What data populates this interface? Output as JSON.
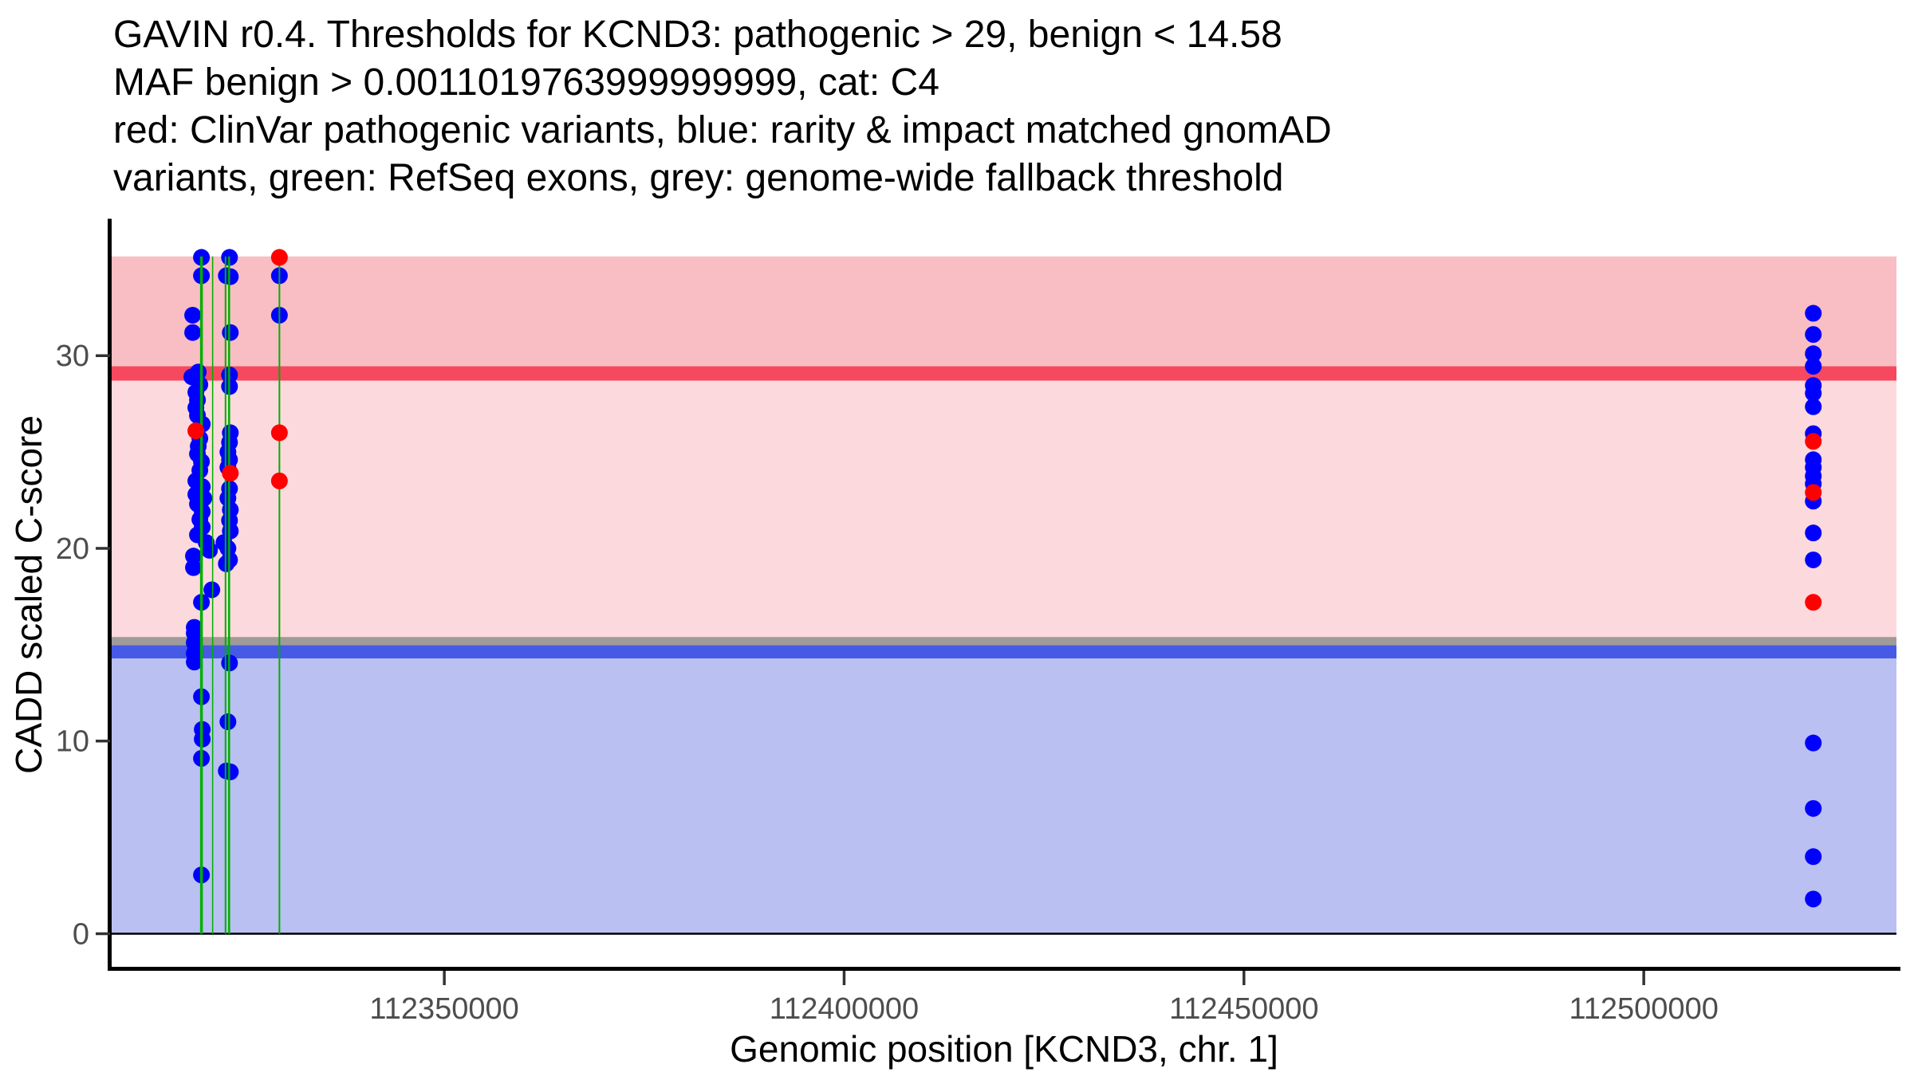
{
  "title_lines": [
    "GAVIN r0.4. Thresholds for KCND3: pathogenic > 29, benign < 14.58",
    "MAF benign > 0.0011019763999999999, cat: C4",
    "red: ClinVar pathogenic variants, blue: rarity & impact matched gnomAD",
    "variants, green: RefSeq exons, grey: genome-wide fallback threshold"
  ],
  "colors": {
    "point_blue": "#0000FF",
    "point_red": "#FF0000",
    "exon_green": "#00AF00",
    "pathogenic_zone": "#F8BEC3",
    "pathogenic_band": "#F6495F",
    "vous_zone": "#FCD9DD",
    "fallback_band": "#A09B98",
    "benign_band": "#465AE6",
    "benign_zone": "#BAC0F2",
    "axis_text": "#4D4D4D",
    "axis_line": "#000000",
    "tick_mark": "#333333",
    "zero_line": "#000000"
  },
  "chart_data": {
    "type": "scatter",
    "title": "GAVIN r0.4. Thresholds for KCND3: pathogenic > 29, benign < 14.58 MAF benign > 0.0011019763999999999, cat: C4",
    "xlabel": "Genomic position [KCND3, chr. 1]",
    "ylabel": "CADD scaled C-score",
    "xlim": [
      112308400,
      112531600
    ],
    "ylim": [
      -1.8,
      37
    ],
    "grid": false,
    "legend": "in title text",
    "axes": {
      "x": {
        "label": "Genomic position [KCND3, chr. 1]",
        "ticks": [
          112350000,
          112400000,
          112450000,
          112500000
        ],
        "tick_labels": [
          "112350000",
          "112400000",
          "112450000",
          "112500000"
        ]
      },
      "y": {
        "label": "CADD scaled C-score",
        "ticks": [
          0,
          10,
          20,
          30
        ],
        "tick_labels": [
          "0",
          "10",
          "20",
          "30"
        ]
      }
    },
    "thresholds": {
      "pathogenic_cadd": 29,
      "benign_cadd": 14.58,
      "maf_benign": "0.0011019763999999999",
      "category": "C4",
      "genome_wide_fallback_cadd": 15
    },
    "regions": [
      {
        "name": "pathogenic-zone",
        "y1": 29.45,
        "y2": 35.15,
        "color": "#F8BEC3"
      },
      {
        "name": "pathogenic-threshold-band",
        "y1": 28.7,
        "y2": 29.45,
        "color": "#F6495F"
      },
      {
        "name": "vous-zone",
        "y1": 15.4,
        "y2": 28.7,
        "color": "#FCD9DD"
      },
      {
        "name": "fallback-threshold-band",
        "y1": 14.97,
        "y2": 15.4,
        "color": "#A09B98"
      },
      {
        "name": "benign-threshold-band",
        "y1": 14.28,
        "y2": 14.97,
        "color": "#465AE6"
      },
      {
        "name": "benign-zone",
        "y1": 0,
        "y2": 14.28,
        "color": "#BAC0F2"
      }
    ],
    "baseline": {
      "y": 0,
      "color": "#000000",
      "width": 2.5
    },
    "exons": {
      "name": "RefSeq exons",
      "color": "#00AF00",
      "y_top": 35.15,
      "y_bottom": 0,
      "lines": [
        {
          "x": 112319630,
          "w": 3.5
        },
        {
          "x": 112321030,
          "w": 1.5
        },
        {
          "x": 112322640,
          "w": 2.0
        },
        {
          "x": 112323090,
          "w": 2.5
        },
        {
          "x": 112329380,
          "w": 2.0
        }
      ]
    },
    "point_radius": 10.5,
    "series": [
      {
        "name": "rarity & impact matched gnomAD variants",
        "color": "#0000FF",
        "points": [
          [
            112319630,
            35.1
          ],
          [
            112323140,
            35.1
          ],
          [
            112319630,
            34.15
          ],
          [
            112322740,
            34.15
          ],
          [
            112323240,
            34.1
          ],
          [
            112329380,
            34.15
          ],
          [
            112318530,
            32.1
          ],
          [
            112329380,
            32.1
          ],
          [
            112318530,
            31.2
          ],
          [
            112323240,
            31.2
          ],
          [
            112319230,
            29.15
          ],
          [
            112318430,
            28.9
          ],
          [
            112323140,
            29.0
          ],
          [
            112319430,
            28.5
          ],
          [
            112323140,
            28.4
          ],
          [
            112318930,
            28.1
          ],
          [
            112319130,
            27.7
          ],
          [
            112318930,
            27.3
          ],
          [
            112319130,
            26.9
          ],
          [
            112319730,
            26.45
          ],
          [
            112323240,
            26.0
          ],
          [
            112319430,
            25.7
          ],
          [
            112323140,
            25.5
          ],
          [
            112319230,
            25.3
          ],
          [
            112322940,
            25.0
          ],
          [
            112319130,
            24.9
          ],
          [
            112323140,
            24.6
          ],
          [
            112319630,
            24.5
          ],
          [
            112322940,
            24.2
          ],
          [
            112319430,
            24.05
          ],
          [
            112318930,
            23.5
          ],
          [
            112319730,
            23.2
          ],
          [
            112323140,
            23.1
          ],
          [
            112318930,
            22.8
          ],
          [
            112319930,
            22.6
          ],
          [
            112322940,
            22.6
          ],
          [
            112319130,
            22.3
          ],
          [
            112323240,
            22.0
          ],
          [
            112319730,
            21.9
          ],
          [
            112319430,
            21.5
          ],
          [
            112323140,
            21.45
          ],
          [
            112319730,
            21.1
          ],
          [
            112323240,
            20.9
          ],
          [
            112319130,
            20.7
          ],
          [
            112322440,
            20.3
          ],
          [
            112320230,
            20.3
          ],
          [
            112322940,
            20.0
          ],
          [
            112320630,
            19.9
          ],
          [
            112318630,
            19.6
          ],
          [
            112323140,
            19.4
          ],
          [
            112322740,
            19.2
          ],
          [
            112318630,
            19.0
          ],
          [
            112320930,
            17.85
          ],
          [
            112319630,
            17.2
          ],
          [
            112318730,
            15.9
          ],
          [
            112318730,
            15.6
          ],
          [
            112318730,
            15.1
          ],
          [
            112318730,
            14.55
          ],
          [
            112318730,
            14.1
          ],
          [
            112323140,
            14.05
          ],
          [
            112319630,
            12.3
          ],
          [
            112322940,
            11.0
          ],
          [
            112319730,
            10.6
          ],
          [
            112319730,
            10.1
          ],
          [
            112319630,
            9.1
          ],
          [
            112322740,
            8.45
          ],
          [
            112323240,
            8.4
          ],
          [
            112319630,
            3.05
          ],
          [
            112521200,
            32.2
          ],
          [
            112521200,
            31.1
          ],
          [
            112521200,
            30.1
          ],
          [
            112521200,
            29.45
          ],
          [
            112521200,
            28.45
          ],
          [
            112521200,
            28.05
          ],
          [
            112521200,
            27.35
          ],
          [
            112521200,
            25.95
          ],
          [
            112521200,
            24.6
          ],
          [
            112521200,
            24.2
          ],
          [
            112521200,
            23.75
          ],
          [
            112521200,
            23.35
          ],
          [
            112521200,
            22.45
          ],
          [
            112521200,
            20.8
          ],
          [
            112521200,
            19.4
          ],
          [
            112521200,
            9.9
          ],
          [
            112521200,
            6.5
          ],
          [
            112521200,
            4.0
          ],
          [
            112521200,
            1.8
          ]
        ]
      },
      {
        "name": "ClinVar pathogenic variants",
        "color": "#FF0000",
        "points": [
          [
            112329380,
            35.1
          ],
          [
            112318930,
            26.1
          ],
          [
            112329380,
            26.0
          ],
          [
            112323240,
            23.9
          ],
          [
            112329380,
            23.5
          ],
          [
            112521200,
            25.55
          ],
          [
            112521200,
            22.9
          ],
          [
            112521200,
            17.2
          ]
        ]
      }
    ]
  }
}
